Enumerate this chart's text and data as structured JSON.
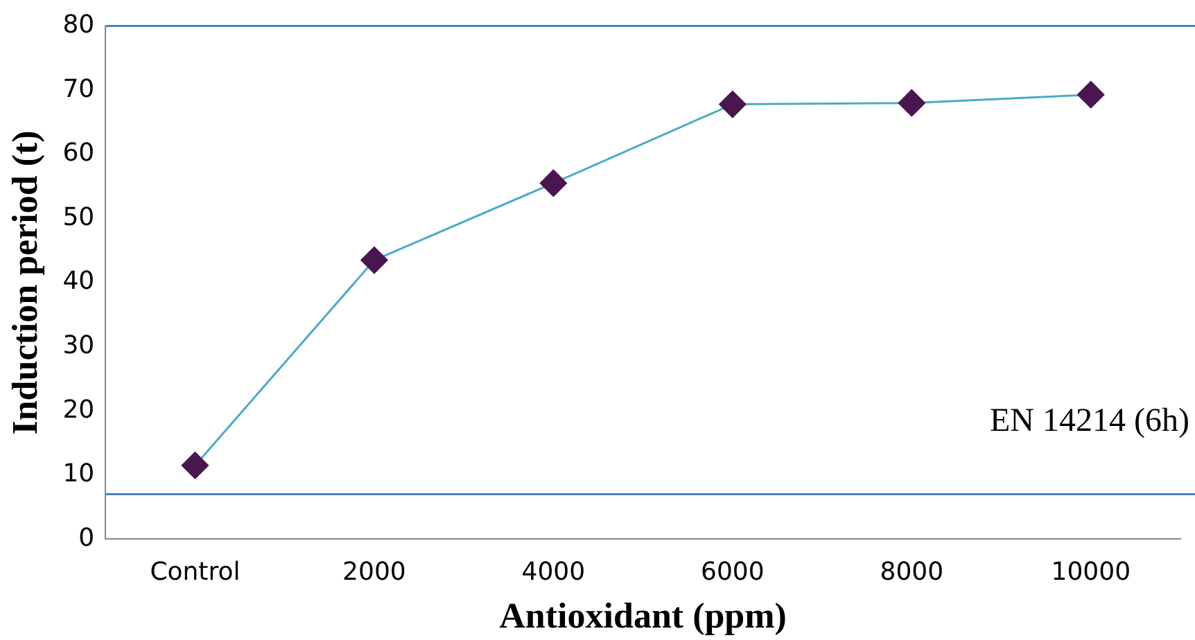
{
  "chart_data": {
    "type": "line",
    "xlabel": "Antioxidant (ppm)",
    "ylabel": "Induction period (t)",
    "categories": [
      "Control",
      "2000",
      "4000",
      "6000",
      "8000",
      "10000"
    ],
    "series": [
      {
        "color": "#4bacc6",
        "colors": [
          "#4a1650",
          "#4a1650",
          "#4a1650",
          "#4a1650",
          "#4a1650",
          "#4a1650"
        ],
        "values": [
          11.5,
          43.5,
          55.5,
          67.8,
          68,
          69.3
        ]
      }
    ],
    "marker": "diamond",
    "ylim": [
      0,
      80
    ],
    "yticks": [
      0,
      10,
      20,
      30,
      40,
      50,
      60,
      70,
      80
    ],
    "grid": false,
    "legend": false,
    "ref_lines": [
      {
        "axis": "y",
        "value": 80,
        "color": "#4f81bd"
      },
      {
        "axis": "y",
        "value": 7,
        "label": "EN 14214 (6h)",
        "color": "#4f81bd"
      }
    ]
  }
}
